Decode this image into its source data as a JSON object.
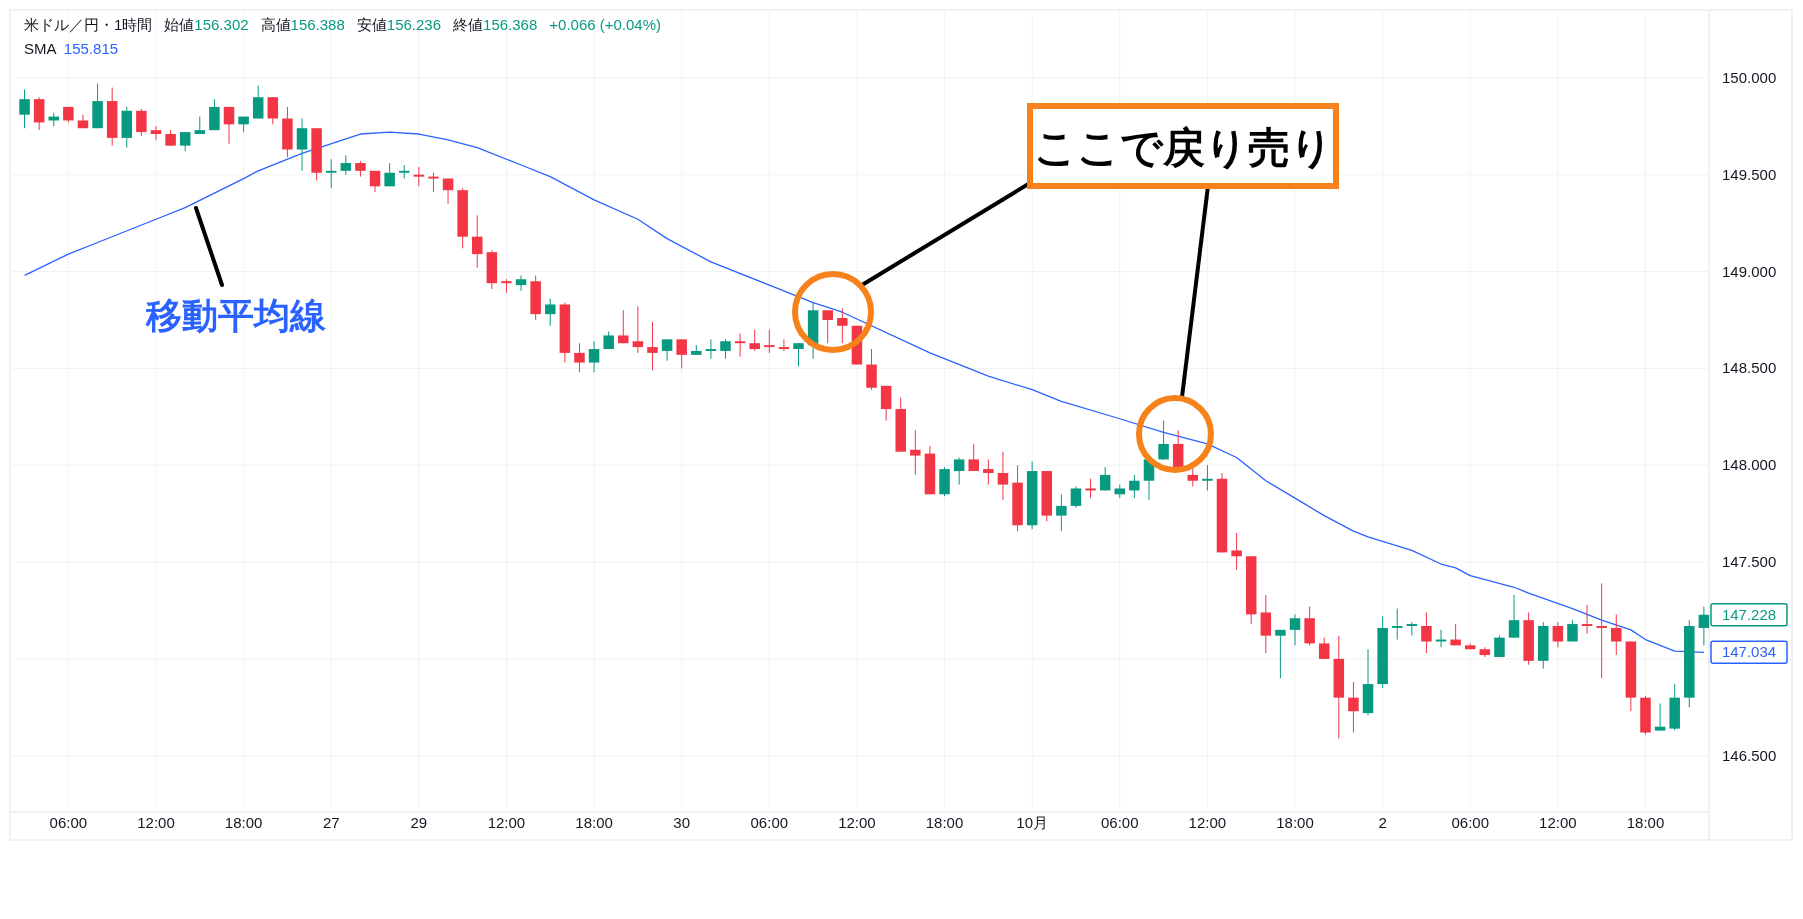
{
  "chart_data": {
    "type": "candlestick",
    "title": "米ドル／円・1時間",
    "annotations": [
      "始値156.302",
      "高値156.388",
      "安値156.236",
      "終値156.368",
      "+0.066 (+0.04%)",
      "SMA 155.815",
      "移動平均線",
      "ここで戻り売り",
      "147.228",
      "147.034"
    ],
    "categories": [
      null,
      null,
      null,
      "06:00",
      null,
      null,
      null,
      null,
      null,
      "12:00",
      null,
      null,
      null,
      null,
      null,
      "18:00",
      null,
      null,
      null,
      null,
      null,
      "27",
      null,
      null,
      null,
      null,
      null,
      "29",
      null,
      null,
      null,
      null,
      null,
      "12:00",
      null,
      null,
      null,
      null,
      null,
      "18:00",
      null,
      null,
      null,
      null,
      null,
      "30",
      null,
      null,
      null,
      null,
      null,
      "06:00",
      null,
      null,
      null,
      null,
      null,
      "12:00",
      null,
      null,
      null,
      null,
      null,
      "18:00",
      null,
      null,
      null,
      null,
      null,
      "10月",
      null,
      null,
      null,
      null,
      null,
      "06:00",
      null,
      null,
      null,
      null,
      null,
      "12:00",
      null,
      null,
      null,
      null,
      null,
      "18:00",
      null,
      null,
      null,
      null,
      null,
      "2",
      null,
      null,
      null,
      null,
      null,
      "06:00",
      null,
      null,
      null,
      null,
      null,
      "12:00",
      null,
      null,
      null,
      null,
      null,
      "18:00",
      null,
      null,
      null,
      null
    ],
    "ohlc": [
      [
        149.81,
        149.94,
        149.74,
        149.89
      ],
      [
        149.89,
        149.9,
        149.73,
        149.77
      ],
      [
        149.78,
        149.82,
        149.75,
        149.8
      ],
      [
        149.85,
        149.85,
        149.77,
        149.78
      ],
      [
        149.78,
        149.81,
        149.74,
        149.74
      ],
      [
        149.74,
        149.97,
        149.74,
        149.88
      ],
      [
        149.88,
        149.95,
        149.65,
        149.69
      ],
      [
        149.69,
        149.85,
        149.64,
        149.83
      ],
      [
        149.83,
        149.84,
        149.7,
        149.72
      ],
      [
        149.73,
        149.75,
        149.68,
        149.71
      ],
      [
        149.71,
        149.73,
        149.65,
        149.65
      ],
      [
        149.65,
        149.72,
        149.62,
        149.72
      ],
      [
        149.71,
        149.8,
        149.71,
        149.73
      ],
      [
        149.73,
        149.89,
        149.73,
        149.85
      ],
      [
        149.85,
        149.85,
        149.66,
        149.76
      ],
      [
        149.76,
        149.8,
        149.72,
        149.8
      ],
      [
        149.79,
        149.96,
        149.79,
        149.9
      ],
      [
        149.9,
        149.9,
        149.76,
        149.79
      ],
      [
        149.79,
        149.85,
        149.59,
        149.63
      ],
      [
        149.63,
        149.79,
        149.52,
        149.74
      ],
      [
        149.74,
        149.74,
        149.47,
        149.51
      ],
      [
        149.51,
        149.58,
        149.43,
        149.52
      ],
      [
        149.52,
        149.6,
        149.5,
        149.56
      ],
      [
        149.56,
        149.57,
        149.49,
        149.52
      ],
      [
        149.52,
        149.52,
        149.41,
        149.44
      ],
      [
        149.44,
        149.56,
        149.44,
        149.51
      ],
      [
        149.51,
        149.55,
        149.48,
        149.52
      ],
      [
        149.5,
        149.54,
        149.44,
        149.49
      ],
      [
        149.49,
        149.51,
        149.41,
        149.48
      ],
      [
        149.48,
        149.48,
        149.35,
        149.42
      ],
      [
        149.42,
        149.43,
        149.12,
        149.18
      ],
      [
        149.18,
        149.29,
        149.02,
        149.09
      ],
      [
        149.1,
        149.11,
        148.91,
        148.94
      ],
      [
        148.95,
        148.96,
        148.89,
        148.94
      ],
      [
        148.93,
        148.98,
        148.9,
        148.96
      ],
      [
        148.95,
        148.98,
        148.75,
        148.78
      ],
      [
        148.78,
        148.86,
        148.72,
        148.83
      ],
      [
        148.83,
        148.84,
        148.53,
        148.58
      ],
      [
        148.58,
        148.63,
        148.48,
        148.53
      ],
      [
        148.53,
        148.64,
        148.48,
        148.6
      ],
      [
        148.6,
        148.69,
        148.6,
        148.67
      ],
      [
        148.67,
        148.8,
        148.63,
        148.63
      ],
      [
        148.64,
        148.82,
        148.58,
        148.61
      ],
      [
        148.61,
        148.74,
        148.49,
        148.58
      ],
      [
        148.59,
        148.65,
        148.54,
        148.65
      ],
      [
        148.65,
        148.65,
        148.5,
        148.57
      ],
      [
        148.57,
        148.62,
        148.57,
        148.59
      ],
      [
        148.59,
        148.65,
        148.55,
        148.6
      ],
      [
        148.59,
        148.65,
        148.55,
        148.64
      ],
      [
        148.64,
        148.68,
        148.56,
        148.63
      ],
      [
        148.63,
        148.7,
        148.59,
        148.6
      ],
      [
        148.62,
        148.7,
        148.58,
        148.61
      ],
      [
        148.61,
        148.65,
        148.59,
        148.6
      ],
      [
        148.6,
        148.63,
        148.51,
        148.63
      ],
      [
        148.62,
        148.84,
        148.55,
        148.8
      ],
      [
        148.8,
        148.8,
        148.63,
        148.75
      ],
      [
        148.76,
        148.81,
        148.63,
        148.72
      ],
      [
        148.72,
        148.72,
        148.52,
        148.52
      ],
      [
        148.52,
        148.6,
        148.39,
        148.4
      ],
      [
        148.41,
        148.41,
        148.23,
        148.29
      ],
      [
        148.29,
        148.35,
        148.07,
        148.07
      ],
      [
        148.08,
        148.18,
        147.95,
        148.05
      ],
      [
        148.06,
        148.1,
        147.85,
        147.85
      ],
      [
        147.85,
        147.99,
        147.84,
        147.98
      ],
      [
        147.97,
        148.04,
        147.9,
        148.03
      ],
      [
        148.03,
        148.11,
        147.97,
        147.97
      ],
      [
        147.98,
        148.03,
        147.9,
        147.96
      ],
      [
        147.96,
        148.07,
        147.82,
        147.9
      ],
      [
        147.91,
        148.0,
        147.66,
        147.69
      ],
      [
        147.69,
        148.02,
        147.67,
        147.97
      ],
      [
        147.97,
        147.97,
        147.71,
        147.74
      ],
      [
        147.74,
        147.85,
        147.66,
        147.79
      ],
      [
        147.79,
        147.89,
        147.78,
        147.88
      ],
      [
        147.88,
        147.93,
        147.83,
        147.87
      ],
      [
        147.87,
        147.99,
        147.87,
        147.95
      ],
      [
        147.85,
        147.9,
        147.83,
        147.88
      ],
      [
        147.87,
        147.95,
        147.83,
        147.92
      ],
      [
        147.92,
        148.03,
        147.82,
        148.03
      ],
      [
        148.03,
        148.23,
        148.03,
        148.11
      ],
      [
        148.11,
        148.18,
        147.99,
        147.99
      ],
      [
        147.95,
        147.99,
        147.89,
        147.92
      ],
      [
        147.92,
        148.0,
        147.87,
        147.93
      ],
      [
        147.93,
        147.96,
        147.55,
        147.55
      ],
      [
        147.56,
        147.65,
        147.46,
        147.53
      ],
      [
        147.53,
        147.53,
        147.18,
        147.23
      ],
      [
        147.24,
        147.33,
        147.03,
        147.12
      ],
      [
        147.12,
        147.15,
        146.9,
        147.15
      ],
      [
        147.15,
        147.23,
        147.07,
        147.21
      ],
      [
        147.21,
        147.27,
        147.07,
        147.08
      ],
      [
        147.08,
        147.11,
        147.0,
        147.0
      ],
      [
        147.0,
        147.12,
        146.59,
        146.8
      ],
      [
        146.8,
        146.88,
        146.62,
        146.73
      ],
      [
        146.72,
        147.05,
        146.71,
        146.87
      ],
      [
        146.87,
        147.22,
        146.85,
        147.16
      ],
      [
        147.16,
        147.26,
        147.1,
        147.17
      ],
      [
        147.17,
        147.19,
        147.12,
        147.18
      ],
      [
        147.17,
        147.24,
        147.03,
        147.09
      ],
      [
        147.09,
        147.15,
        147.06,
        147.1
      ],
      [
        147.1,
        147.18,
        147.07,
        147.07
      ],
      [
        147.07,
        147.08,
        147.05,
        147.05
      ],
      [
        147.05,
        147.06,
        147.01,
        147.02
      ],
      [
        147.01,
        147.12,
        147.01,
        147.11
      ],
      [
        147.11,
        147.33,
        147.11,
        147.2
      ],
      [
        147.2,
        147.24,
        146.97,
        146.99
      ],
      [
        146.99,
        147.19,
        146.95,
        147.17
      ],
      [
        147.17,
        147.19,
        147.06,
        147.09
      ],
      [
        147.09,
        147.2,
        147.09,
        147.18
      ],
      [
        147.18,
        147.28,
        147.13,
        147.17
      ],
      [
        147.17,
        147.39,
        146.9,
        147.16
      ],
      [
        147.16,
        147.23,
        147.02,
        147.09
      ],
      [
        147.09,
        147.09,
        146.73,
        146.8
      ],
      [
        146.8,
        146.81,
        146.61,
        146.62
      ],
      [
        146.63,
        146.77,
        146.63,
        146.65
      ],
      [
        146.64,
        146.87,
        146.63,
        146.8
      ],
      [
        146.8,
        147.2,
        146.75,
        147.17
      ],
      [
        147.16,
        147.27,
        147.07,
        147.228
      ]
    ],
    "series": [
      {
        "type": "line",
        "color": "#2962ff",
        "values": [
          148.98,
          null,
          null,
          149.09,
          null,
          149.15,
          null,
          null,
          null,
          149.27,
          null,
          149.33,
          null,
          null,
          null,
          149.48,
          149.52,
          null,
          null,
          149.61,
          null,
          null,
          null,
          149.71,
          null,
          149.72,
          null,
          149.71,
          null,
          149.68,
          null,
          149.64,
          null,
          null,
          149.55,
          null,
          149.49,
          null,
          null,
          149.37,
          null,
          null,
          149.27,
          null,
          149.17,
          null,
          null,
          149.05,
          null,
          null,
          null,
          148.93,
          null,
          null,
          148.84,
          null,
          148.79,
          null,
          null,
          null,
          null,
          null,
          148.58,
          null,
          null,
          null,
          148.46,
          null,
          null,
          148.39,
          null,
          148.33,
          null,
          null,
          null,
          148.24,
          null,
          null,
          148.17,
          null,
          null,
          148.11,
          null,
          148.04,
          null,
          147.92,
          null,
          147.83,
          null,
          147.74,
          null,
          147.66,
          147.63,
          null,
          null,
          147.56,
          null,
          147.49,
          147.47,
          147.43,
          null,
          null,
          147.37,
          147.34,
          null,
          null,
          147.26,
          null,
          147.2,
          null,
          147.15,
          147.1,
          null,
          147.04,
          null,
          147.034
        ]
      }
    ],
    "ylim": [
      146.22,
      150.34
    ],
    "yticks": [
      {
        "value": 146.5,
        "label": "146.500"
      },
      {
        "value": 147,
        "label": null
      },
      {
        "value": 147.5,
        "label": "147.500"
      },
      {
        "value": 148,
        "label": "148.000"
      },
      {
        "value": 148.5,
        "label": "148.500"
      },
      {
        "value": 149,
        "label": "149.000"
      },
      {
        "value": 149.5,
        "label": "149.500"
      },
      {
        "value": 150,
        "label": "150.000"
      }
    ],
    "grid": true
  }
}
